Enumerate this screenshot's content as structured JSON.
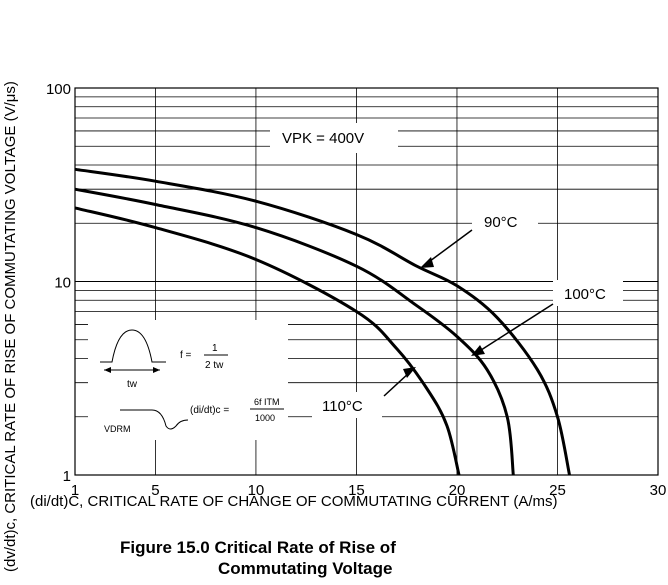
{
  "chart_data": {
    "type": "line",
    "y_scale": "log",
    "xlim": [
      1,
      30
    ],
    "ylim": [
      1,
      100
    ],
    "x_ticks": [
      "1",
      "5",
      "10",
      "15",
      "20",
      "25",
      "30"
    ],
    "y_ticks": [
      "1",
      "10",
      "100"
    ],
    "xlabel": "(di/dt)C, CRITICAL RATE OF CHANGE OF COMMUTATING CURRENT (A/ms)",
    "ylabel": "(dv/dt)c, CRITICAL RATE OF RISE OF COMMUTATING VOLTAGE (V/μs)",
    "grid": true,
    "annotation_vpk": "VPK = 400V",
    "series": [
      {
        "name": "90°C",
        "points": [
          [
            1,
            38
          ],
          [
            5,
            33
          ],
          [
            10,
            26
          ],
          [
            15,
            17.5
          ],
          [
            18,
            12
          ],
          [
            20,
            9.5
          ],
          [
            22,
            6.5
          ],
          [
            24,
            3.5
          ],
          [
            25,
            2.0
          ],
          [
            25.6,
            1.0
          ]
        ]
      },
      {
        "name": "100°C",
        "points": [
          [
            1,
            30
          ],
          [
            5,
            25
          ],
          [
            10,
            19
          ],
          [
            15,
            12
          ],
          [
            18,
            7.5
          ],
          [
            20,
            5.2
          ],
          [
            21.5,
            3.5
          ],
          [
            22.5,
            2.0
          ],
          [
            22.8,
            1.0
          ]
        ]
      },
      {
        "name": "110°C",
        "points": [
          [
            1,
            24
          ],
          [
            5,
            19
          ],
          [
            10,
            13
          ],
          [
            15,
            7
          ],
          [
            17,
            4.5
          ],
          [
            18.5,
            2.8
          ],
          [
            19.5,
            1.8
          ],
          [
            20.1,
            1.0
          ]
        ]
      }
    ],
    "inset": {
      "tw": "tw",
      "f_eq": "f =",
      "f_num": "1",
      "f_den": "2 tw",
      "vdrm": "VDRM",
      "didt_eq": "(di/dt)c =",
      "didt_num": "6f ITM",
      "didt_den": "1000"
    }
  },
  "figure_title_line1": "Figure 15.0  Critical Rate of Rise of",
  "figure_title_line2": "Commutating Voltage"
}
